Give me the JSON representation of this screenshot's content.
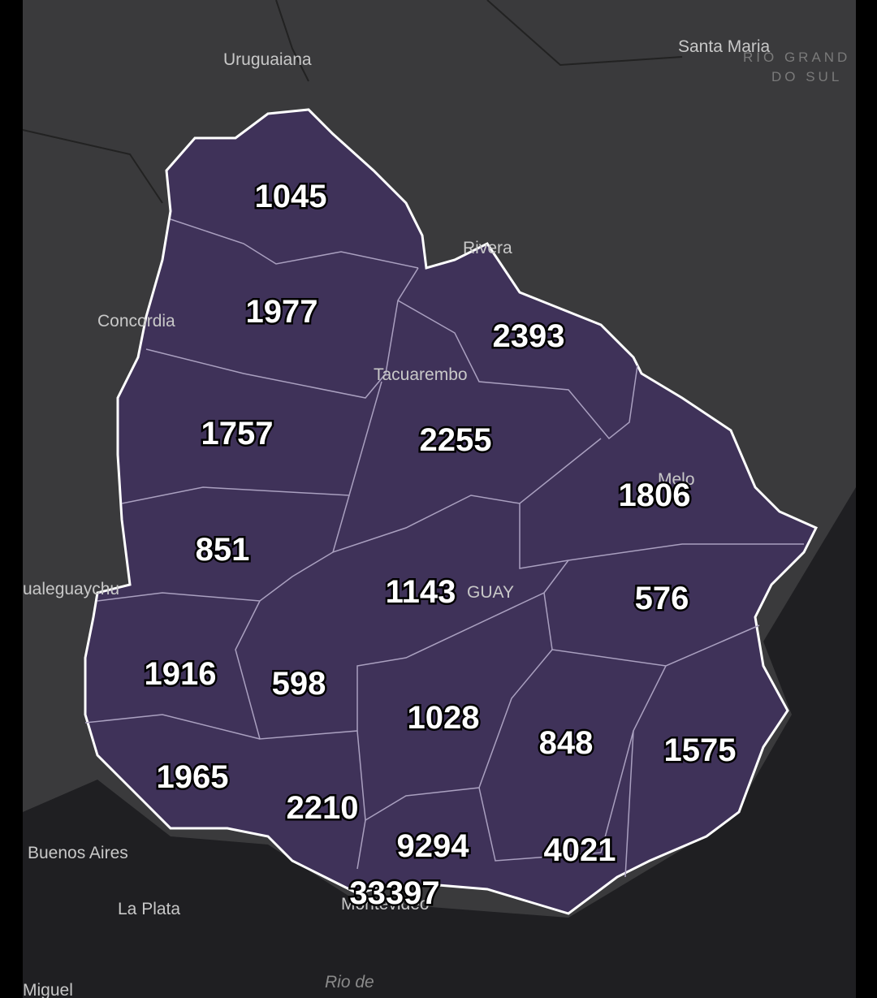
{
  "places": [
    {
      "label": "Uruguaiana"
    },
    {
      "label": "Santa Maria"
    },
    {
      "label": "RIO GRAND"
    },
    {
      "label": "DO SUL"
    },
    {
      "label": "Rivera"
    },
    {
      "label": "Concordia"
    },
    {
      "label": "Tacuarembo"
    },
    {
      "label": "Melo"
    },
    {
      "label": "ualeguaychu"
    },
    {
      "label": "GUAY"
    },
    {
      "label": "Buenos Aires"
    },
    {
      "label": "La Plata"
    },
    {
      "label": "Montevideo"
    },
    {
      "label": "Rio de"
    },
    {
      "label": "Miguel"
    }
  ],
  "departments": [
    {
      "value": 1045
    },
    {
      "value": 1977
    },
    {
      "value": 2393
    },
    {
      "value": 1757
    },
    {
      "value": 2255
    },
    {
      "value": 1806
    },
    {
      "value": 851
    },
    {
      "value": 1143
    },
    {
      "value": 576
    },
    {
      "value": 1916
    },
    {
      "value": 598
    },
    {
      "value": 1028
    },
    {
      "value": 848
    },
    {
      "value": 1575
    },
    {
      "value": 1965
    },
    {
      "value": 2210
    },
    {
      "value": 9294
    },
    {
      "value": 4021
    },
    {
      "value": 33397
    }
  ]
}
